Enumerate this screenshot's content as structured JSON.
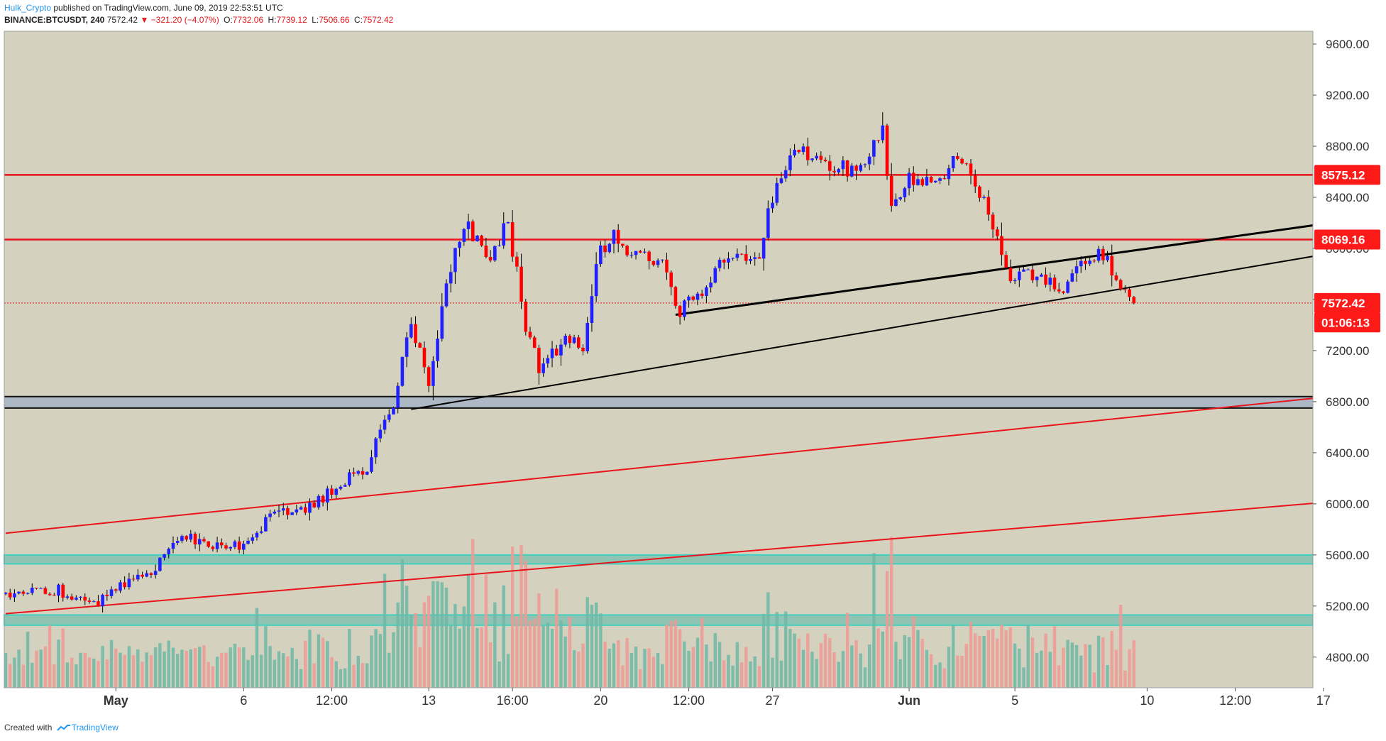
{
  "header": {
    "author": "Hulk_Crypto",
    "published_text": "published on TradingView.com, June 09, 2019 22:53:51 UTC",
    "symbol": "BINANCE:BTCUSDT, 240",
    "last_price": "7572.42",
    "change": "▼ −321.20 (−4.07%)",
    "ohlc": [
      {
        "label": "O:",
        "value": "7732.06"
      },
      {
        "label": "H:",
        "value": "7739.12"
      },
      {
        "label": "L:",
        "value": "7506.66"
      },
      {
        "label": "C:",
        "value": "7572.42"
      }
    ]
  },
  "footer": {
    "created_with": "Created with",
    "brand": "TradingView"
  },
  "colors": {
    "background": "#d4d1bf",
    "bull": "#2121ff",
    "bear": "#ff0000",
    "volume_bull": "#6fb8a6",
    "volume_bear": "#ef9a93",
    "level_line": "#e8141b",
    "zone_fill": "#a6b4c6",
    "teal_zone": "#55b9a8",
    "trend_black": "#000000",
    "trend_red": "#e8141b"
  },
  "chart_data": {
    "type": "candlestick",
    "ylim": [
      4560,
      9700
    ],
    "y_ticks": [
      9600,
      9200,
      8800,
      8400,
      8000,
      7600,
      7200,
      6800,
      6400,
      6000,
      5600,
      5200,
      4800
    ],
    "y_tick_labels": [
      "9600.00",
      "9200.00",
      "8800.00",
      "8400.00",
      "8000.00",
      "7600.00",
      "7200.00",
      "6800.00",
      "6400.00",
      "6000.00",
      "5600.00",
      "5200.00",
      "4800.00"
    ],
    "x_range_bars": [
      0,
      309
    ],
    "x_ticks": [
      {
        "label": "May",
        "bar": 25
      },
      {
        "label": "6",
        "bar": 54
      },
      {
        "label": "12:00",
        "bar": 74
      },
      {
        "label": "13",
        "bar": 96
      },
      {
        "label": "16:00",
        "bar": 115
      },
      {
        "label": "20",
        "bar": 135
      },
      {
        "label": "12:00",
        "bar": 155
      },
      {
        "label": "27",
        "bar": 174
      },
      {
        "label": "Jun",
        "bar": 205
      },
      {
        "label": "5",
        "bar": 229
      },
      {
        "label": "10",
        "bar": 259
      },
      {
        "label": "12:00",
        "bar": 279
      },
      {
        "label": "17",
        "bar": 299
      }
    ],
    "price_tags": [
      {
        "label": "8575.12",
        "value": 8575.12
      },
      {
        "label": "8069.16",
        "value": 8069.16
      },
      {
        "label": "7572.42",
        "value": 7572.42
      },
      {
        "label": "01:06:13",
        "value": 7420
      }
    ],
    "horizontal_levels": [
      8575.12,
      8069.16
    ],
    "last_price_line": 7572.42,
    "zones": [
      {
        "kind": "support",
        "from": 6750,
        "to": 6840
      },
      {
        "kind": "volume-band",
        "from": 5530,
        "to": 5600
      },
      {
        "kind": "volume-band",
        "from": 5050,
        "to": 5130
      }
    ],
    "trendlines": [
      {
        "kind": "black-thick",
        "bar1": 152,
        "price1": 7480,
        "bar2": 309,
        "price2": 8240
      },
      {
        "kind": "black-thin",
        "bar1": 92,
        "price1": 6740,
        "bar2": 309,
        "price2": 8010
      },
      {
        "kind": "red",
        "bar1": 0,
        "price1": 5770,
        "bar2": 309,
        "price2": 6870
      },
      {
        "kind": "red",
        "bar1": 0,
        "price1": 5140,
        "bar2": 309,
        "price2": 6040
      }
    ],
    "anchors": [
      [
        0,
        5280
      ],
      [
        12,
        5320
      ],
      [
        20,
        5200
      ],
      [
        25,
        5360
      ],
      [
        33,
        5480
      ],
      [
        40,
        5780
      ],
      [
        47,
        5660
      ],
      [
        55,
        5680
      ],
      [
        60,
        5940
      ],
      [
        68,
        5960
      ],
      [
        76,
        6140
      ],
      [
        82,
        6300
      ],
      [
        88,
        6800
      ],
      [
        92,
        7420
      ],
      [
        96,
        6920
      ],
      [
        100,
        7700
      ],
      [
        104,
        8200
      ],
      [
        110,
        7950
      ],
      [
        114,
        8200
      ],
      [
        118,
        7400
      ],
      [
        121,
        7060
      ],
      [
        128,
        7300
      ],
      [
        131,
        7200
      ],
      [
        134,
        7920
      ],
      [
        138,
        8080
      ],
      [
        143,
        7920
      ],
      [
        149,
        7940
      ],
      [
        153,
        7500
      ],
      [
        158,
        7650
      ],
      [
        163,
        7930
      ],
      [
        171,
        7980
      ],
      [
        175,
        8560
      ],
      [
        180,
        8780
      ],
      [
        187,
        8620
      ],
      [
        194,
        8640
      ],
      [
        199,
        8900
      ],
      [
        201,
        8300
      ],
      [
        205,
        8550
      ],
      [
        211,
        8560
      ],
      [
        217,
        8700
      ],
      [
        222,
        8400
      ],
      [
        225,
        8060
      ],
      [
        228,
        7700
      ],
      [
        231,
        7820
      ],
      [
        236,
        7760
      ],
      [
        240,
        7600
      ],
      [
        243,
        7920
      ],
      [
        247,
        7960
      ],
      [
        250,
        7880
      ],
      [
        253,
        7740
      ],
      [
        256,
        7560
      ]
    ]
  }
}
